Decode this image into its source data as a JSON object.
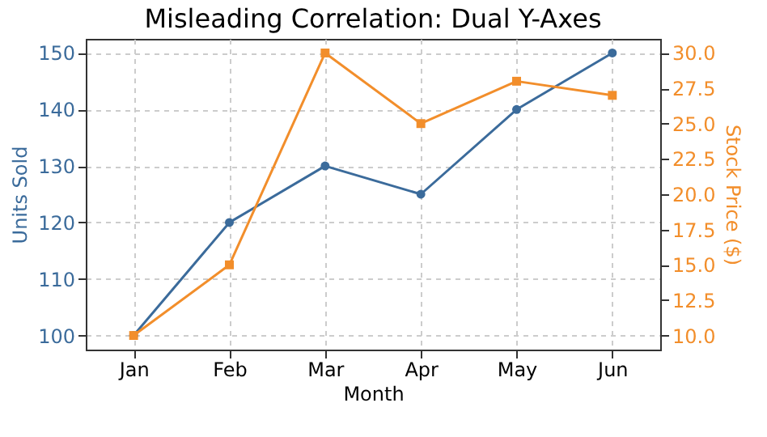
{
  "chart_data": {
    "type": "line",
    "title": "Misleading Correlation: Dual Y-Axes",
    "xlabel": "Month",
    "ylabel": "Units Sold",
    "y2label": "Stock Price ($)",
    "categories": [
      "Jan",
      "Feb",
      "Mar",
      "Apr",
      "May",
      "Jun"
    ],
    "series": [
      {
        "name": null,
        "color": "#3b6b9b",
        "values": [
          100,
          120,
          130,
          125,
          140,
          150
        ],
        "marker": "circle"
      },
      {
        "name": null,
        "color": "#f28e2b",
        "values": [
          10,
          15,
          30,
          25,
          28,
          27
        ],
        "marker": "square",
        "axis": "y2"
      }
    ],
    "ylim": [
      97.5,
      152.5
    ],
    "yticks": [
      100,
      110,
      120,
      130,
      140,
      150
    ],
    "y2lim": [
      9,
      31
    ],
    "y2ticks": [
      {
        "value": 10,
        "label": "10.0"
      },
      {
        "value": 12.5,
        "label": "12.5"
      },
      {
        "value": 15,
        "label": "15.0"
      },
      {
        "value": 17.5,
        "label": "17.5"
      },
      {
        "value": 20,
        "label": "20.0"
      },
      {
        "value": 22.5,
        "label": "22.5"
      },
      {
        "value": 25,
        "label": "25.0"
      },
      {
        "value": 27.5,
        "label": "27.5"
      },
      {
        "value": 30,
        "label": "30.0"
      }
    ],
    "grid": true,
    "line_style": "solid"
  }
}
